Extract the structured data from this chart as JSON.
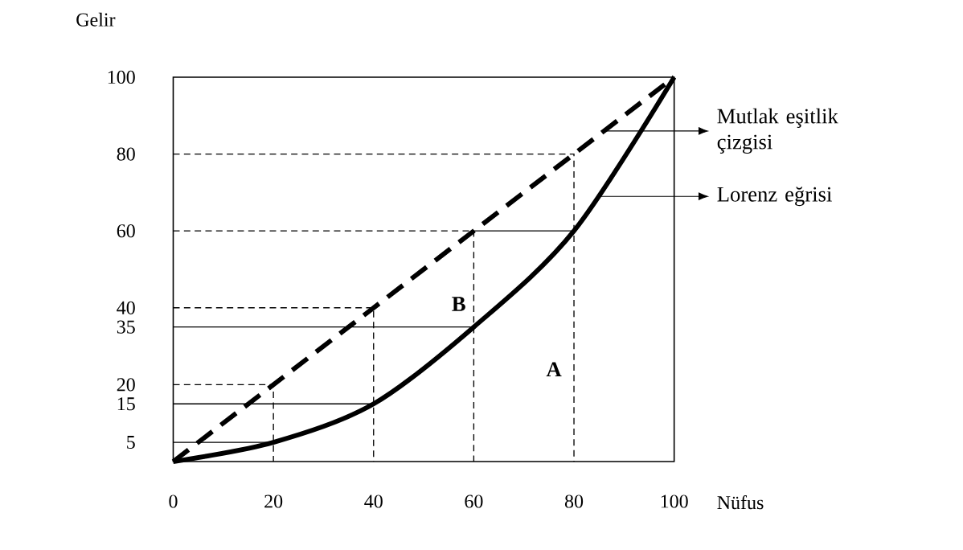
{
  "chart_data": {
    "type": "line",
    "xlabel": "Nüfus",
    "ylabel": "Gelir",
    "xlim": [
      0,
      100
    ],
    "ylim": [
      0,
      100
    ],
    "xticks": [
      0,
      20,
      40,
      60,
      80,
      100
    ],
    "yticks": [
      5,
      15,
      20,
      35,
      40,
      60,
      80,
      100
    ],
    "series": [
      {
        "color": "#000000",
        "line_style": "dashed",
        "x": [
          0,
          100
        ],
        "values": [
          0,
          100
        ]
      },
      {
        "color": "#000000",
        "line_style": "solid",
        "x": [
          0,
          20,
          40,
          60,
          80,
          100
        ],
        "values": [
          0,
          5,
          15,
          35,
          60,
          100
        ]
      },
      {
        "color": "#000000",
        "line_style": "dashed",
        "x": [
          0,
          20,
          20
        ],
        "values": [
          20,
          20,
          0
        ]
      },
      {
        "color": "#000000",
        "line_style": "dashed",
        "x": [
          0,
          40,
          40
        ],
        "values": [
          40,
          40,
          0
        ]
      },
      {
        "color": "#000000",
        "line_style": "dashed",
        "x": [
          0,
          60,
          60
        ],
        "values": [
          60,
          60,
          0
        ]
      },
      {
        "color": "#000000",
        "line_style": "dashed",
        "x": [
          0,
          80,
          80
        ],
        "values": [
          80,
          80,
          0
        ]
      },
      {
        "color": "#000000",
        "line_style": "solid",
        "x": [
          0,
          20
        ],
        "values": [
          5,
          5
        ]
      },
      {
        "color": "#000000",
        "line_style": "solid",
        "x": [
          0,
          40
        ],
        "values": [
          15,
          15
        ]
      },
      {
        "color": "#000000",
        "line_style": "solid",
        "x": [
          0,
          60
        ],
        "values": [
          35,
          35
        ]
      },
      {
        "color": "#000000",
        "line_style": "solid",
        "x": [
          60,
          80
        ],
        "values": [
          60,
          60
        ]
      }
    ],
    "annotations": [
      "B",
      "A",
      "Mutlak eşitlik çizgisi",
      "Lorenz eğrisi"
    ]
  }
}
